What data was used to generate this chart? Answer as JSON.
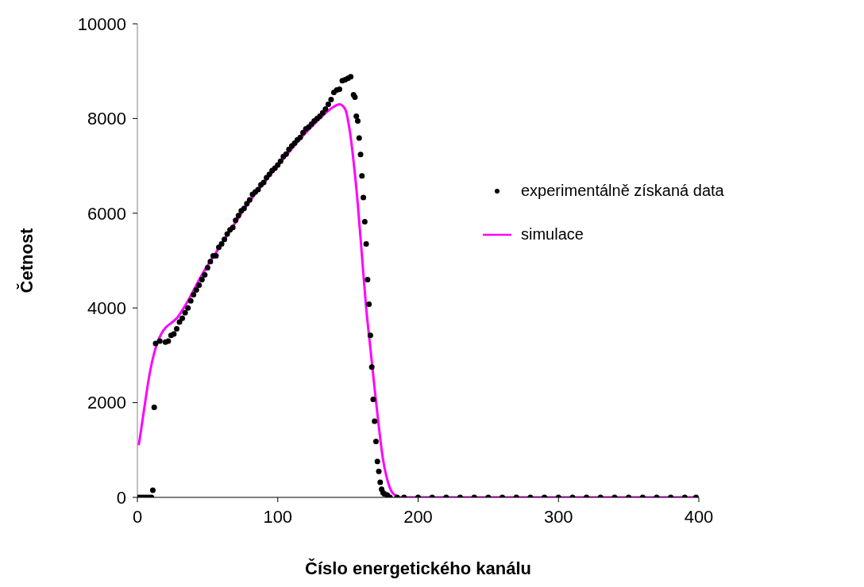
{
  "chart_data": {
    "type": "scatter",
    "xlabel": "Číslo energetického kanálu",
    "ylabel": "Četnost",
    "xlim": [
      0,
      400
    ],
    "xticks": [
      0,
      100,
      200,
      300,
      400
    ],
    "ylim": [
      0,
      10000
    ],
    "yticks": [
      0,
      2000,
      4000,
      6000,
      8000,
      10000
    ],
    "legend": "right",
    "series": [
      {
        "name": "experimentálně získaná data",
        "marker": "circle",
        "color": "#000000",
        "x": [
          0,
          2,
          4,
          6,
          8,
          10,
          11,
          12,
          13,
          16,
          20,
          22,
          24,
          26,
          28,
          30,
          32,
          34,
          36,
          38,
          40,
          42,
          44,
          46,
          48,
          50,
          52,
          54,
          56,
          58,
          60,
          62,
          64,
          66,
          68,
          70,
          72,
          74,
          76,
          78,
          80,
          82,
          84,
          86,
          88,
          90,
          92,
          94,
          96,
          98,
          100,
          102,
          104,
          106,
          108,
          110,
          112,
          114,
          116,
          118,
          120,
          122,
          124,
          126,
          128,
          130,
          132,
          134,
          136,
          138,
          140,
          142,
          144,
          146,
          148,
          150,
          152,
          154,
          155,
          156,
          157,
          158,
          159,
          160,
          161,
          162,
          163,
          164,
          165,
          166,
          167,
          168,
          169,
          170,
          171,
          172,
          173,
          174,
          175,
          176,
          178,
          180,
          185,
          190,
          200,
          210,
          220,
          230,
          240,
          250,
          260,
          270,
          280,
          290,
          300,
          310,
          320,
          330,
          340,
          350,
          360,
          370,
          380,
          390,
          398
        ],
        "values": [
          0,
          0,
          0,
          0,
          0,
          0,
          150,
          1900,
          3250,
          3300,
          3280,
          3300,
          3420,
          3450,
          3560,
          3700,
          3780,
          3900,
          4000,
          4150,
          4280,
          4380,
          4480,
          4600,
          4700,
          4850,
          4980,
          5100,
          5100,
          5280,
          5350,
          5450,
          5560,
          5650,
          5700,
          5850,
          5950,
          6050,
          6100,
          6200,
          6280,
          6400,
          6450,
          6500,
          6600,
          6650,
          6750,
          6820,
          6900,
          6950,
          7020,
          7100,
          7200,
          7250,
          7350,
          7420,
          7480,
          7550,
          7600,
          7700,
          7780,
          7820,
          7880,
          7950,
          8000,
          8050,
          8120,
          8200,
          8300,
          8400,
          8550,
          8600,
          8620,
          8800,
          8820,
          8850,
          8880,
          8500,
          8450,
          8050,
          7950,
          7590,
          7240,
          6790,
          6330,
          5820,
          5350,
          4600,
          4080,
          3420,
          2750,
          2070,
          1610,
          1180,
          760,
          550,
          320,
          170,
          100,
          70,
          50,
          0,
          0,
          0,
          0,
          0,
          0,
          0,
          0,
          0,
          0,
          0,
          0,
          0,
          0,
          0,
          0,
          0,
          0,
          0,
          0,
          0,
          0,
          0,
          0
        ]
      },
      {
        "name": "simulace",
        "type": "line",
        "marker": "none",
        "line_style": "solid",
        "color": "#ff00ff",
        "x": [
          1,
          3,
          5,
          7,
          9,
          12,
          14,
          17,
          20,
          24,
          28,
          32,
          37,
          45,
          60,
          80,
          100,
          120,
          130,
          140,
          144,
          148,
          151,
          154,
          157,
          160,
          163,
          166,
          169,
          172,
          175,
          178,
          181,
          184,
          188,
          250,
          300,
          398
        ],
        "values": [
          1100,
          1500,
          1900,
          2300,
          2650,
          3050,
          3250,
          3450,
          3580,
          3680,
          3780,
          3950,
          4200,
          4650,
          5350,
          6250,
          7000,
          7700,
          8000,
          8250,
          8300,
          8200,
          7800,
          7100,
          6200,
          5100,
          4000,
          3150,
          2300,
          1500,
          800,
          380,
          130,
          40,
          0,
          0,
          0,
          0
        ]
      }
    ]
  }
}
